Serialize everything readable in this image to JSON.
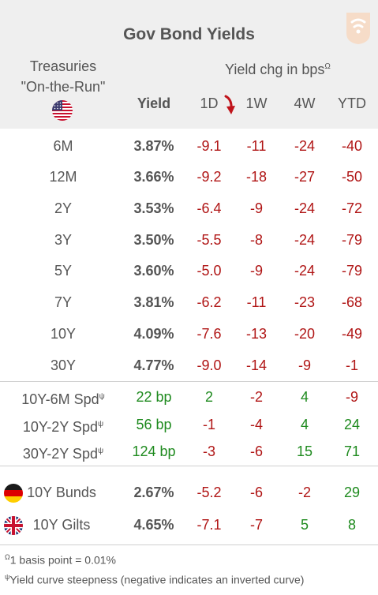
{
  "title": "Gov Bond Yields",
  "treasuries_label_1": "Treasuries",
  "treasuries_label_2": "\"On-the-Run\"",
  "yield_chg_title": "Yield chg in bps",
  "yield_chg_sup": "Ω",
  "columns": {
    "yield": "Yield",
    "c1": "1D",
    "c2": "1W",
    "c3": "4W",
    "c4": "YTD"
  },
  "treasuries": [
    {
      "label": "6M",
      "yield": "3.87%",
      "d1": "-9.1",
      "w1": "-11",
      "w4": "-24",
      "ytd": "-40"
    },
    {
      "label": "12M",
      "yield": "3.66%",
      "d1": "-9.2",
      "w1": "-18",
      "w4": "-27",
      "ytd": "-50"
    },
    {
      "label": "2Y",
      "yield": "3.53%",
      "d1": "-6.4",
      "w1": "-9",
      "w4": "-24",
      "ytd": "-72"
    },
    {
      "label": "3Y",
      "yield": "3.50%",
      "d1": "-5.5",
      "w1": "-8",
      "w4": "-24",
      "ytd": "-79"
    },
    {
      "label": "5Y",
      "yield": "3.60%",
      "d1": "-5.0",
      "w1": "-9",
      "w4": "-24",
      "ytd": "-79"
    },
    {
      "label": "7Y",
      "yield": "3.81%",
      "d1": "-6.2",
      "w1": "-11",
      "w4": "-23",
      "ytd": "-68"
    },
    {
      "label": "10Y",
      "yield": "4.09%",
      "d1": "-7.6",
      "w1": "-13",
      "w4": "-20",
      "ytd": "-49"
    },
    {
      "label": "30Y",
      "yield": "4.77%",
      "d1": "-9.0",
      "w1": "-14",
      "w4": "-9",
      "ytd": "-1"
    }
  ],
  "spreads_sup": "ψ",
  "spreads": [
    {
      "label": "10Y-6M Spd",
      "value": "22 bp",
      "d1": "2",
      "w1": "-2",
      "w4": "4",
      "ytd": "-9"
    },
    {
      "label": "10Y-2Y Spd",
      "value": "56 bp",
      "d1": "-1",
      "w1": "-4",
      "w4": "4",
      "ytd": "24"
    },
    {
      "label": "30Y-2Y Spd",
      "value": "124 bp",
      "d1": "-3",
      "w1": "-6",
      "w4": "15",
      "ytd": "71"
    }
  ],
  "international": [
    {
      "label": "10Y Bunds",
      "yield": "2.67%",
      "d1": "-5.2",
      "w1": "-6",
      "w4": "-2",
      "ytd": "29",
      "flag": "germany-flag-icon"
    },
    {
      "label": "10Y Gilts",
      "yield": "4.65%",
      "d1": "-7.1",
      "w1": "-7",
      "w4": "5",
      "ytd": "8",
      "flag": "uk-flag-icon"
    }
  ],
  "footnote_1_sup": "Ω",
  "footnote_1": "1 basis point = 0.01%",
  "footnote_2_sup": "ψ",
  "footnote_2": "Yield curve steepness (negative indicates an inverted curve)",
  "colors": {
    "negative": "#b01515",
    "positive": "#1e8a1e",
    "header_bg": "#efefef",
    "arrow": "#c0141b"
  }
}
